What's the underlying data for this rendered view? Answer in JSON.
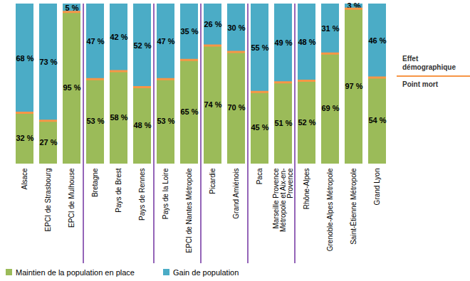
{
  "chart_data": {
    "type": "bar",
    "stacked": true,
    "categories": [
      "Alsace",
      "EPCI de Strasbourg",
      "EPCI de Mulhouse",
      "Bretagne",
      "Pays de Brest",
      "Pays de Rennes",
      "Pays de la Loire",
      "EPCI de Nantes Métropole",
      "Picardie",
      "Grand Amiénois",
      "Paca",
      "Marseille Provence Métropole et Aix-en-Provence",
      "Rhône-Alpes",
      "Grenoble-Alpes Métropole",
      "Saint-Étienne Métropole",
      "Grand Lyon"
    ],
    "series": [
      {
        "name": "Maintien de la population en place",
        "color": "#9bbb59",
        "values": [
          32,
          27,
          95,
          53,
          58,
          48,
          53,
          65,
          74,
          70,
          45,
          51,
          52,
          69,
          97,
          54
        ],
        "value_labels": [
          "32 %",
          "27 %",
          "95 %",
          "53 %",
          "58 %",
          "48 %",
          "53 %",
          "65 %",
          "74 %",
          "70 %",
          "45 %",
          "51 %",
          "52 %",
          "69 %",
          "97 %",
          "54 %"
        ]
      },
      {
        "name": "Gain de population",
        "color": "#4bacc6",
        "values": [
          68,
          73,
          5,
          47,
          42,
          52,
          47,
          35,
          26,
          30,
          55,
          49,
          48,
          31,
          3,
          46
        ],
        "value_labels": [
          "68 %",
          "73 %",
          "5 %",
          "47 %",
          "42 %",
          "52 %",
          "47 %",
          "35 %",
          "26 %",
          "30 %",
          "55 %",
          "49 %",
          "48 %",
          "31 %",
          "3 %",
          "46 %"
        ]
      }
    ],
    "annotations": [
      "Effet démographique",
      "Point mort"
    ],
    "ylim": [
      0,
      100
    ],
    "data_labels": true,
    "tick_labels": "x",
    "legend": "bottom",
    "color": "#f79646"
  }
}
